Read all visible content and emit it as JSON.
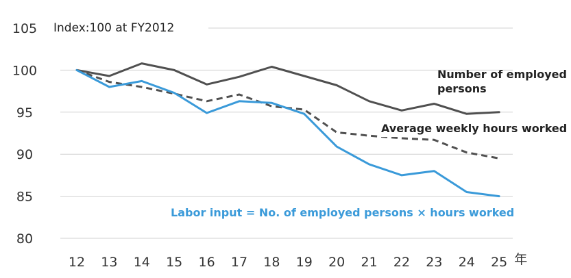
{
  "chart_data": {
    "type": "line",
    "note": "Index:100 at FY2012",
    "x_suffix": "年",
    "categories": [
      "12",
      "13",
      "14",
      "15",
      "16",
      "17",
      "18",
      "19",
      "20",
      "21",
      "22",
      "23",
      "24",
      "25"
    ],
    "ylim": [
      80,
      105
    ],
    "yticks": [
      80,
      85,
      90,
      95,
      100,
      105
    ],
    "grid": true,
    "series": [
      {
        "name": "Number of employed persons",
        "label_lines": [
          "Number of employed",
          "persons"
        ],
        "color": "#505050",
        "dash": "solid",
        "values": [
          100,
          99.3,
          100.8,
          100,
          98.3,
          99.2,
          100.4,
          99.3,
          98.2,
          96.3,
          95.2,
          96.0,
          94.8,
          95.0
        ]
      },
      {
        "name": "Average weekly hours worked",
        "label_lines": [
          "Average weekly hours worked"
        ],
        "color": "#505050",
        "dash": "dashed",
        "values": [
          100,
          98.6,
          98,
          97.2,
          96.3,
          97.1,
          95.7,
          95.3,
          92.6,
          92.2,
          91.9,
          91.7,
          90.2,
          89.5
        ]
      },
      {
        "name": "Labor input = No. of employed persons × hours worked",
        "label_lines": [
          "Labor input = No. of employed persons ×  hours worked"
        ],
        "color": "#3a9ad9",
        "dash": "solid",
        "values": [
          100,
          98,
          98.7,
          97.3,
          94.9,
          96.3,
          96.1,
          94.8,
          90.9,
          88.8,
          87.5,
          88.0,
          85.5,
          85.0
        ]
      }
    ]
  }
}
